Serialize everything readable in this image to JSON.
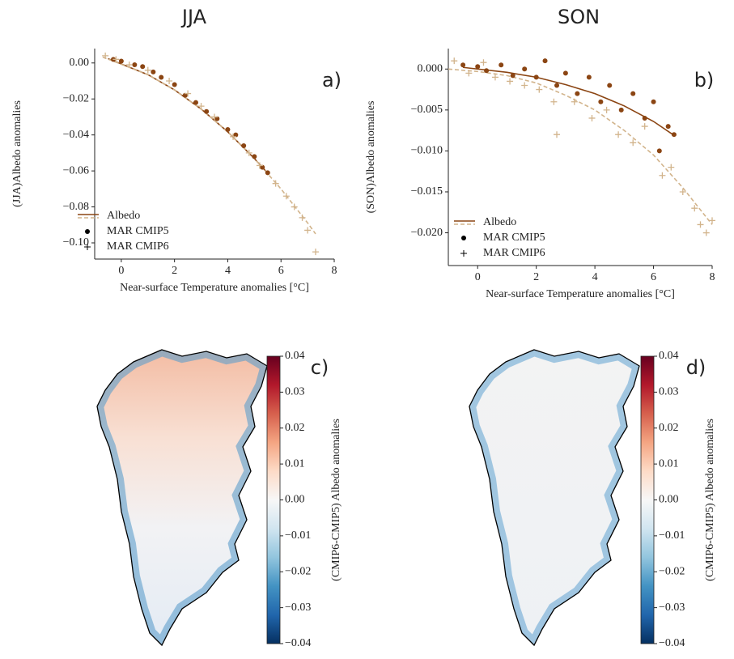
{
  "chart_data": [
    {
      "type": "scatter",
      "title": "JJA",
      "annotation": "a)",
      "x_label": "Near-surface Temperature anomalies [°C]",
      "y_label": "(JJA)Albedo anomalies",
      "xlim": [
        -1,
        8
      ],
      "xticks": [
        0,
        2,
        4,
        6,
        8
      ],
      "ylim": [
        -0.109,
        0.008
      ],
      "yticks": [
        {
          "value": 0,
          "label": "0.00"
        },
        {
          "value": -0.02,
          "label": "−0.02"
        },
        {
          "value": -0.04,
          "label": "−0.04"
        },
        {
          "value": -0.06,
          "label": "−0.06"
        },
        {
          "value": -0.08,
          "label": "−0.08"
        },
        {
          "value": -0.1,
          "label": "−0.10"
        }
      ],
      "series": [
        {
          "name": "Albedo",
          "color": "#8b4513",
          "linestyle": "solid",
          "x": [
            -0.5,
            1,
            2,
            3,
            4,
            5,
            5.5
          ],
          "values": [
            0.0024,
            -0.0065,
            -0.015,
            -0.0256,
            -0.0383,
            -0.0531,
            -0.0613
          ]
        },
        {
          "color": "#d2b48c",
          "linestyle": "dashed",
          "x": [
            -0.7,
            1,
            2,
            3,
            4,
            5,
            6,
            7,
            7.3
          ],
          "values": [
            0.0033,
            -0.0065,
            -0.015,
            -0.0256,
            -0.0383,
            -0.0531,
            -0.07,
            -0.0889,
            -0.095
          ]
        },
        {
          "name": "MAR CMIP5",
          "color": "#8b4513",
          "marker": "o",
          "x": [
            -0.3,
            0,
            0.5,
            0.8,
            1.2,
            1.5,
            2.0,
            2.4,
            2.8,
            3.2,
            3.6,
            4.0,
            4.3,
            4.6,
            5.0,
            5.3,
            5.5
          ],
          "values": [
            0.002,
            0.001,
            -0.001,
            -0.002,
            -0.005,
            -0.008,
            -0.012,
            -0.018,
            -0.022,
            -0.027,
            -0.031,
            -0.037,
            -0.04,
            -0.046,
            -0.052,
            -0.058,
            -0.061
          ]
        },
        {
          "name": "MAR CMIP6",
          "color": "#d2b48c",
          "marker": "+",
          "x": [
            -0.6,
            -0.2,
            0.3,
            1.0,
            1.8,
            2.5,
            3.0,
            3.5,
            4.2,
            4.8,
            5.2,
            5.8,
            6.2,
            6.5,
            6.8,
            7.0,
            7.3
          ],
          "values": [
            0.004,
            0.002,
            -0.001,
            -0.004,
            -0.01,
            -0.017,
            -0.024,
            -0.03,
            -0.041,
            -0.05,
            -0.057,
            -0.067,
            -0.074,
            -0.08,
            -0.086,
            -0.093,
            -0.105
          ]
        }
      ]
    },
    {
      "type": "scatter",
      "title": "SON",
      "annotation": "b)",
      "x_label": "Near-surface Temperature anomalies [°C]",
      "y_label": "(SON)Albedo anomalies",
      "xlim": [
        -1,
        8
      ],
      "xticks": [
        0,
        2,
        4,
        6,
        8
      ],
      "ylim": [
        -0.024,
        0.0025
      ],
      "yticks": [
        {
          "value": 0,
          "label": "0.000"
        },
        {
          "value": -0.005,
          "label": "−0.005"
        },
        {
          "value": -0.01,
          "label": "−0.010"
        },
        {
          "value": -0.015,
          "label": "−0.015"
        },
        {
          "value": -0.02,
          "label": "−0.020"
        }
      ],
      "series": [
        {
          "name": "Albedo",
          "color": "#8b4513",
          "linestyle": "solid",
          "x": [
            -0.5,
            1,
            2,
            3,
            4,
            5,
            6,
            6.7
          ],
          "values": [
            0.0002,
            -0.0004,
            -0.001,
            -0.0019,
            -0.003,
            -0.0045,
            -0.0064,
            -0.0081
          ]
        },
        {
          "color": "#d2b48c",
          "linestyle": "dashed",
          "x": [
            -1,
            0,
            1,
            2,
            3,
            4,
            5,
            6,
            7,
            8
          ],
          "values": [
            0.0,
            -0.0003,
            -0.0008,
            -0.0017,
            -0.0032,
            -0.005,
            -0.0075,
            -0.0105,
            -0.0145,
            -0.019
          ]
        },
        {
          "name": "MAR CMIP5",
          "color": "#8b4513",
          "marker": "o",
          "x": [
            -0.5,
            0,
            0.3,
            0.8,
            1.2,
            1.6,
            2.0,
            2.3,
            2.7,
            3.0,
            3.4,
            3.8,
            4.2,
            4.5,
            4.9,
            5.3,
            5.7,
            6.0,
            6.2,
            6.5,
            6.7
          ],
          "values": [
            0.0005,
            0.0003,
            -0.0002,
            0.0005,
            -0.0008,
            0.0,
            -0.001,
            0.001,
            -0.002,
            -0.0005,
            -0.003,
            -0.001,
            -0.004,
            -0.002,
            -0.005,
            -0.003,
            -0.006,
            -0.004,
            -0.01,
            -0.007,
            -0.008
          ]
        },
        {
          "name": "MAR CMIP6",
          "color": "#d2b48c",
          "marker": "+",
          "x": [
            -0.8,
            -0.3,
            0.2,
            0.6,
            1.1,
            1.6,
            2.1,
            2.6,
            2.7,
            3.3,
            3.9,
            4.4,
            4.8,
            5.3,
            5.7,
            6.3,
            6.6,
            7.0,
            7.4,
            7.6,
            7.8,
            8.0
          ],
          "values": [
            0.001,
            -0.0005,
            0.0008,
            -0.001,
            -0.0015,
            -0.002,
            -0.0025,
            -0.004,
            -0.008,
            -0.004,
            -0.006,
            -0.005,
            -0.008,
            -0.009,
            -0.007,
            -0.013,
            -0.012,
            -0.015,
            -0.017,
            -0.019,
            -0.02,
            -0.0185
          ]
        }
      ]
    },
    {
      "type": "map",
      "annotation": "c)",
      "colorbar_label": "(CMIP6-CMIP5) Albedo anomalies",
      "colormap": "RdBu_r",
      "clim": [
        -0.04,
        0.04
      ],
      "cticks": [
        0.04,
        0.03,
        0.02,
        0.01,
        {
          "value": 0,
          "label": "0.00"
        },
        {
          "value": -0.01,
          "label": "−0.01"
        },
        {
          "value": -0.02,
          "label": "−0.02"
        },
        {
          "value": -0.03,
          "label": "−0.03"
        },
        {
          "value": -0.04,
          "label": "−0.04"
        }
      ]
    },
    {
      "type": "map",
      "annotation": "d)",
      "colorbar_label": "(CMIP6-CMIP5) Albedo anomalies",
      "colormap": "RdBu_r",
      "clim": [
        -0.04,
        0.04
      ],
      "cticks": [
        0.04,
        0.03,
        0.02,
        0.01,
        {
          "value": 0,
          "label": "0.00"
        },
        {
          "value": -0.01,
          "label": "−0.01"
        },
        {
          "value": -0.02,
          "label": "−0.02"
        },
        {
          "value": -0.03,
          "label": "−0.03"
        },
        {
          "value": -0.04,
          "label": "−0.04"
        }
      ]
    }
  ]
}
